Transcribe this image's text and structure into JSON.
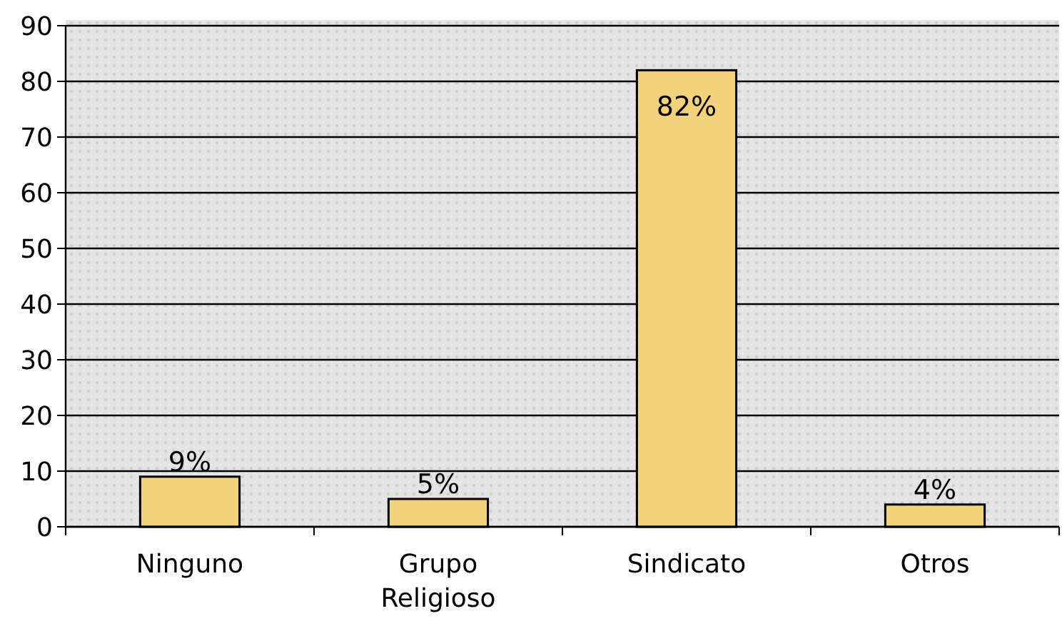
{
  "chart_data": {
    "type": "bar",
    "categories": [
      "Ninguno",
      "Grupo Religioso",
      "Sindicato",
      "Otros"
    ],
    "values": [
      9,
      5,
      82,
      4
    ],
    "value_labels": [
      "9%",
      "5%",
      "82%",
      "4%"
    ],
    "color": "#f2d27a",
    "ylim": [
      0,
      90
    ],
    "yticks": [
      0,
      10,
      20,
      30,
      40,
      50,
      60,
      70,
      80,
      90
    ],
    "grid": "y"
  }
}
